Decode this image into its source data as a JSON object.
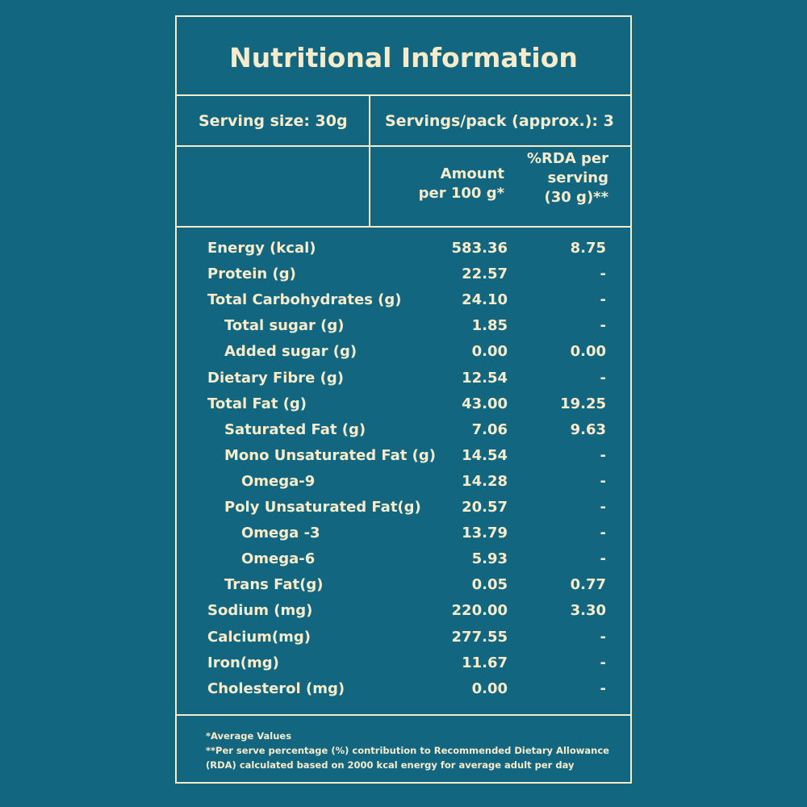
{
  "title": "Nutritional Information",
  "serving": {
    "size": "Serving size: 30g",
    "per_pack": "Servings/pack (approx.): 3"
  },
  "columns": {
    "amount": "Amount\nper 100 g*",
    "rda": "%RDA per\nserving\n(30 g)**"
  },
  "rows": [
    {
      "label": "Energy (kcal)",
      "amount": "583.36",
      "rda": "8.75",
      "indent": 0
    },
    {
      "label": "Protein (g)",
      "amount": "22.57",
      "rda": "-",
      "indent": 0
    },
    {
      "label": "Total Carbohydrates (g)",
      "amount": "24.10",
      "rda": "-",
      "indent": 0
    },
    {
      "label": "Total sugar (g)",
      "amount": "1.85",
      "rda": "-",
      "indent": 1
    },
    {
      "label": "Added sugar (g)",
      "amount": "0.00",
      "rda": "0.00",
      "indent": 1
    },
    {
      "label": "Dietary Fibre (g)",
      "amount": "12.54",
      "rda": "-",
      "indent": 0
    },
    {
      "label": "Total Fat (g)",
      "amount": "43.00",
      "rda": "19.25",
      "indent": 0
    },
    {
      "label": "Saturated Fat (g)",
      "amount": "7.06",
      "rda": "9.63",
      "indent": 1
    },
    {
      "label": "Mono Unsaturated Fat (g)",
      "amount": "14.54",
      "rda": "-",
      "indent": 1
    },
    {
      "label": "Omega-9",
      "amount": "14.28",
      "rda": "-",
      "indent": 2
    },
    {
      "label": "Poly Unsaturated Fat(g)",
      "amount": "20.57",
      "rda": "-",
      "indent": 1
    },
    {
      "label": "Omega -3",
      "amount": "13.79",
      "rda": "-",
      "indent": 2
    },
    {
      "label": "Omega-6",
      "amount": "5.93",
      "rda": "-",
      "indent": 2
    },
    {
      "label": "Trans Fat(g)",
      "amount": "0.05",
      "rda": "0.77",
      "indent": 1
    },
    {
      "label": "Sodium (mg)",
      "amount": "220.00",
      "rda": "3.30",
      "indent": 0
    },
    {
      "label": "Calcium(mg)",
      "amount": "277.55",
      "rda": "-",
      "indent": 0
    },
    {
      "label": "Iron(mg)",
      "amount": "11.67",
      "rda": "-",
      "indent": 0
    },
    {
      "label": "Cholesterol (mg)",
      "amount": "0.00",
      "rda": "-",
      "indent": 0
    }
  ],
  "footnotes": [
    "*Average Values",
    "**Per serve percentage (%) contribution to Recommended Dietary Allowance",
    "(RDA) calculated based on 2000 kcal energy for average adult per day"
  ],
  "colors": {
    "background": "#136680",
    "text": "#f6eccc"
  }
}
